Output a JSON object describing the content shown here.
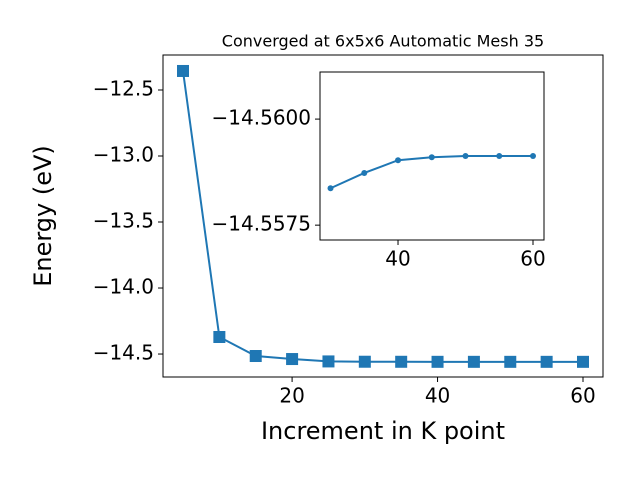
{
  "chart_data": [
    {
      "type": "line",
      "title": "Converged at 6x5x6 Automatic Mesh 35",
      "x_label": "Increment in K point",
      "y_label": "Energy (eV)",
      "marker": "square",
      "color": "#1f77b4",
      "x": [
        5,
        10,
        15,
        20,
        25,
        30,
        35,
        40,
        45,
        50,
        55,
        60
      ],
      "series": [
        {
          "color": "#1f77b4",
          "values": [
            -12.356,
            -14.371,
            -14.515,
            -14.538,
            -14.556,
            -14.55837,
            -14.55873,
            -14.55903,
            -14.5591,
            -14.55913,
            -14.55913,
            -14.55913
          ]
        }
      ],
      "xlim": [
        2.25,
        62.75
      ],
      "ylim": [
        -14.674,
        -12.235
      ],
      "xticks": [
        20,
        40,
        60
      ],
      "yticks": [
        {
          "value": -12.5,
          "label": "−12.5"
        },
        {
          "value": -13.0,
          "label": "−13.0"
        },
        {
          "value": -13.5,
          "label": "−13.5"
        },
        {
          "value": -14.0,
          "label": "−14.0"
        },
        {
          "value": -14.5,
          "label": "−14.5"
        }
      ]
    },
    {
      "type": "line",
      "marker": "circle",
      "color": "#1f77b4",
      "x": [
        30,
        35,
        40,
        45,
        50,
        55,
        60
      ],
      "series": [
        {
          "color": "#1f77b4",
          "values": [
            -14.55837,
            -14.55873,
            -14.55903,
            -14.5591,
            -14.55913,
            -14.55913,
            -14.55913
          ]
        }
      ],
      "xlim": [
        28.44,
        61.63
      ],
      "ylim": [
        -14.55715,
        -14.56111
      ],
      "xticks": [
        40,
        60
      ],
      "yticks": [
        {
          "value": -14.56,
          "label": "−14.5600"
        },
        {
          "value": -14.5575,
          "label": "−14.5575"
        }
      ]
    }
  ]
}
